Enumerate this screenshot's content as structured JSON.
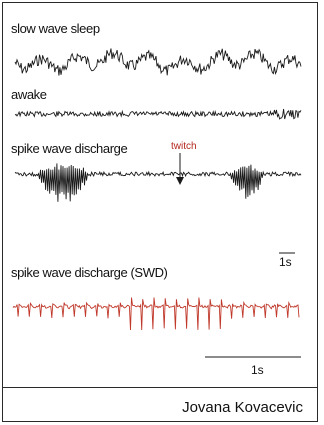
{
  "traces": {
    "slow_wave_sleep": {
      "label": "slow wave sleep",
      "color": "#1a1a1a"
    },
    "awake": {
      "label": "awake",
      "color": "#1a1a1a"
    },
    "spike_wave_discharge": {
      "label": "spike wave discharge",
      "color": "#1a1a1a",
      "annotation": "twitch"
    },
    "swd": {
      "label": "spike wave  discharge (SWD)",
      "color": "#c0392b"
    }
  },
  "scale_bars": {
    "top": {
      "label": "1s"
    },
    "bottom": {
      "label": "1s"
    }
  },
  "colors": {
    "annotation": "#b3261e",
    "border": "#2a2a2a"
  },
  "author": "Jovana Kovacevic"
}
